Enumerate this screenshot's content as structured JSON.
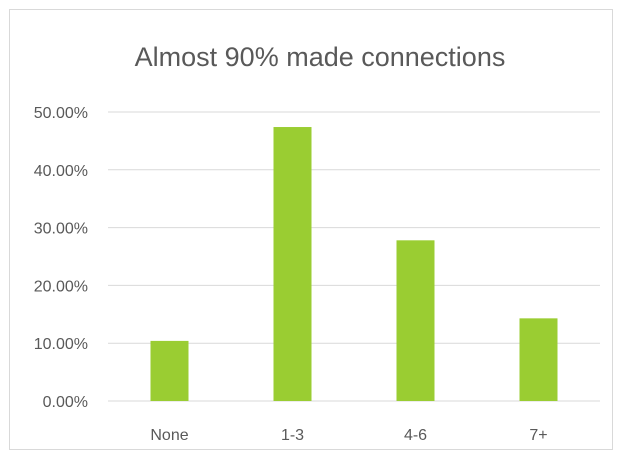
{
  "chart_data": {
    "type": "bar",
    "title": "Almost 90% made connections",
    "categories": [
      "None",
      "1-3",
      "4-6",
      "7+"
    ],
    "series": [
      {
        "values": [
          0.104,
          0.474,
          0.278,
          0.143
        ]
      }
    ],
    "ylim": [
      0,
      0.5
    ],
    "yticks": [
      0,
      0.1,
      0.2,
      0.3,
      0.4,
      0.5
    ],
    "ytick_labels": [
      "0.00%",
      "10.00%",
      "20.00%",
      "30.00%",
      "40.00%",
      "50.00%"
    ],
    "grid": true,
    "legend": "none",
    "bar_color": "#9acd32",
    "grid_color": "#d9d9d9",
    "text_color": "#595959"
  }
}
